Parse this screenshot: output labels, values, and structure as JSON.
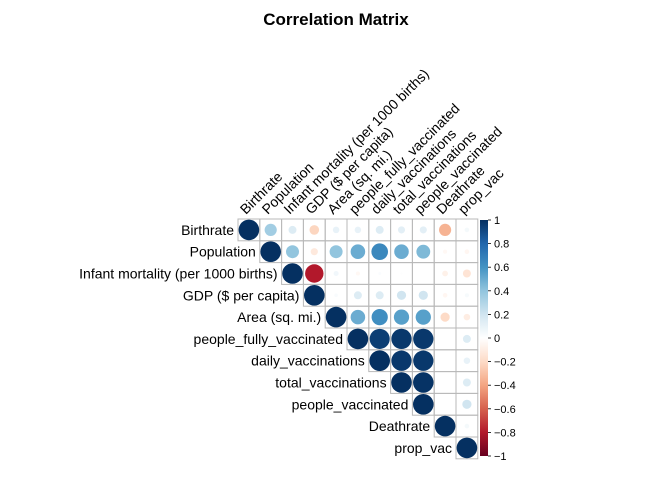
{
  "chart_data": {
    "type": "heatmap",
    "subtype": "correlation-matrix-upper-circles",
    "title": "Correlation Matrix",
    "variables": [
      "Birthrate",
      "Population",
      "Infant mortality (per 1000 births)",
      "GDP ($ per capita)",
      "Area (sq. mi.)",
      "people_fully_vaccinated",
      "daily_vaccinations",
      "total_vaccinations",
      "people_vaccinated",
      "Deathrate",
      "prop_vac"
    ],
    "matrix": [
      [
        1.0,
        0.35,
        0.15,
        -0.22,
        0.1,
        0.1,
        0.15,
        0.12,
        0.12,
        -0.35,
        0.05
      ],
      [
        null,
        1.0,
        0.4,
        -0.12,
        0.4,
        0.5,
        0.65,
        0.5,
        0.45,
        -0.04,
        -0.05
      ],
      [
        null,
        null,
        1.0,
        -0.8,
        0.06,
        -0.04,
        0.02,
        0.01,
        0.0,
        -0.08,
        -0.15
      ],
      [
        null,
        null,
        null,
        1.0,
        0.03,
        0.15,
        0.15,
        0.2,
        0.2,
        -0.05,
        0.04
      ],
      [
        null,
        null,
        null,
        null,
        1.0,
        0.5,
        0.62,
        0.55,
        0.55,
        -0.2,
        -0.1
      ],
      [
        null,
        null,
        null,
        null,
        null,
        1.0,
        0.95,
        0.97,
        0.97,
        0.0,
        0.15
      ],
      [
        null,
        null,
        null,
        null,
        null,
        null,
        1.0,
        0.97,
        0.97,
        0.0,
        0.1
      ],
      [
        null,
        null,
        null,
        null,
        null,
        null,
        null,
        1.0,
        0.99,
        0.0,
        0.15
      ],
      [
        null,
        null,
        null,
        null,
        null,
        null,
        null,
        null,
        1.0,
        0.0,
        0.2
      ],
      [
        null,
        null,
        null,
        null,
        null,
        null,
        null,
        null,
        null,
        1.0,
        0.05
      ],
      [
        null,
        null,
        null,
        null,
        null,
        null,
        null,
        null,
        null,
        null,
        1.0
      ]
    ],
    "color_scale": {
      "range": [
        -1,
        1
      ],
      "ticks": [
        1,
        0.8,
        0.6,
        0.4,
        0.2,
        0,
        -0.2,
        -0.4,
        -0.6,
        -0.8,
        -1
      ],
      "tick_labels": [
        "1",
        "0.8",
        "0.6",
        "0.4",
        "0.2",
        "0",
        "−0.2",
        "−0.4",
        "−0.6",
        "−0.8",
        "−1"
      ],
      "colors": [
        "#67001F",
        "#B2182B",
        "#D6604D",
        "#F4A582",
        "#FDDBC7",
        "#FFFFFF",
        "#D1E5F0",
        "#92C5DE",
        "#4393C3",
        "#2166AC",
        "#053061"
      ]
    },
    "grid": true,
    "legend_position": "right"
  }
}
